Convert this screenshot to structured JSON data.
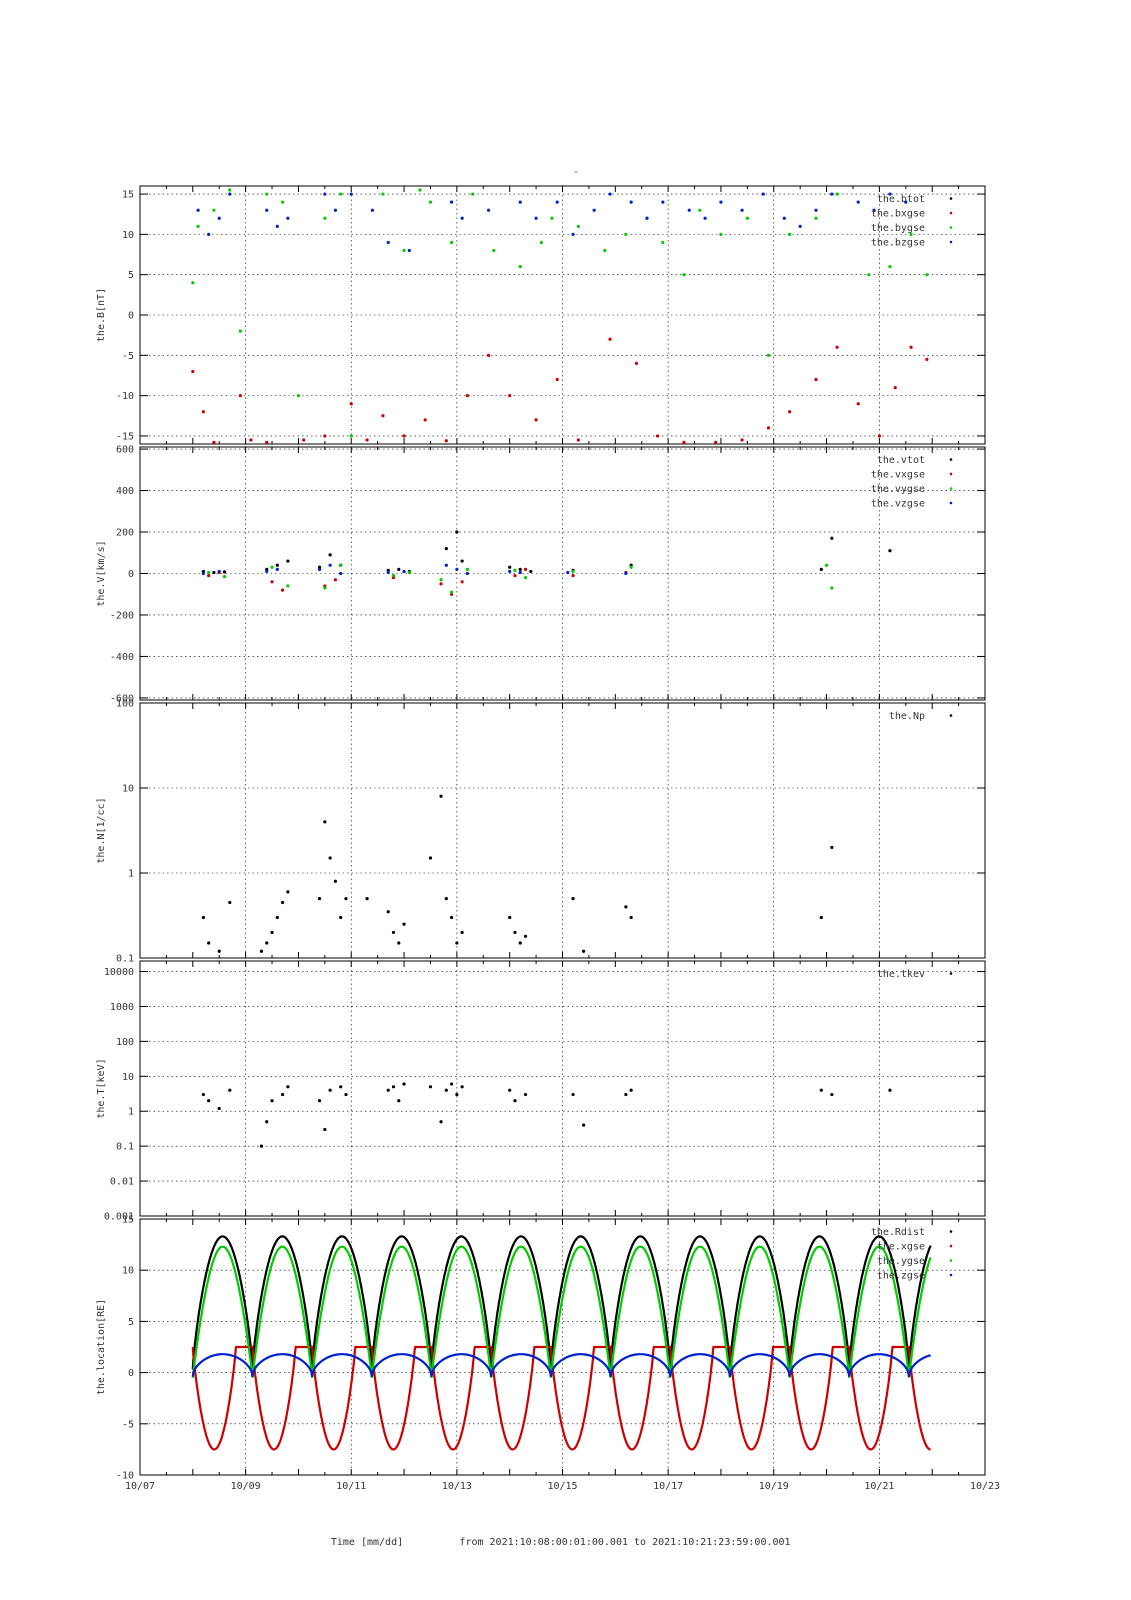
{
  "title": "-",
  "xaxis": {
    "label": "Time [mm/dd]",
    "range_text": "from 2021:10:08:00:01:00.001  to  2021:10:21:23:59:00.001",
    "day_range": [
      7,
      23
    ],
    "tick_days": [
      7,
      9,
      11,
      13,
      15,
      17,
      19,
      21,
      23
    ],
    "tick_labels": [
      "10/07",
      "10/09",
      "10/11",
      "10/13",
      "10/15",
      "10/17",
      "10/19",
      "10/21",
      "10/23"
    ]
  },
  "colors": {
    "black": "#000000",
    "red": "#cc0000",
    "green": "#00cc00",
    "blue": "#0022cc"
  },
  "chart_data": [
    {
      "type": "scatter",
      "panel": "B",
      "ylabel": "the.B[nT]",
      "ylim": [
        -16,
        16
      ],
      "yticks": [
        -15,
        -10,
        -5,
        0,
        5,
        10,
        15
      ],
      "ytick_labels": [
        "-15",
        "-10",
        "-5",
        "0",
        "5",
        "10",
        "15"
      ],
      "grid": true,
      "legend_position": "top-right",
      "series": [
        {
          "name": "the.btot",
          "color": "#000000",
          "x": [],
          "y": []
        },
        {
          "name": "the.bxgse",
          "color": "#cc0000",
          "x": [
            8.0,
            8.2,
            8.4,
            8.9,
            9.1,
            9.4,
            10.1,
            10.5,
            11.0,
            11.3,
            11.6,
            12.0,
            12.4,
            12.8,
            13.2,
            13.6,
            14.0,
            14.5,
            14.9,
            15.3,
            15.9,
            16.4,
            16.8,
            17.3,
            17.9,
            18.4,
            18.9,
            19.3,
            19.8,
            20.2,
            20.6,
            21.0,
            21.3,
            21.6,
            21.9
          ],
          "y": [
            -7,
            -12,
            -15.8,
            -10,
            -15.5,
            -15.8,
            -15.5,
            -15.0,
            -11,
            -15.5,
            -12.5,
            -15,
            -13,
            -15.6,
            -10,
            -5,
            -10,
            -13,
            -8,
            -15.5,
            -3,
            -6,
            -15,
            -15.8,
            -15.8,
            -15.5,
            -14,
            -12,
            -8,
            -4,
            -11,
            -15,
            -9,
            -4,
            -5.5
          ]
        },
        {
          "name": "the.bygse",
          "color": "#00cc00",
          "x": [
            8.0,
            8.1,
            8.4,
            8.7,
            8.9,
            9.4,
            9.7,
            10.0,
            10.5,
            10.8,
            11.0,
            11.6,
            12.0,
            12.3,
            12.5,
            12.9,
            13.3,
            13.7,
            14.2,
            14.6,
            14.8,
            15.3,
            15.8,
            16.2,
            16.6,
            16.9,
            17.3,
            17.6,
            18.0,
            18.5,
            18.9,
            19.3,
            19.8,
            20.2,
            20.8,
            21.2,
            21.6,
            21.9
          ],
          "y": [
            4,
            11,
            13,
            15.5,
            -2,
            15,
            14,
            -10,
            12,
            15,
            -15,
            15,
            8,
            15.5,
            14,
            9,
            15,
            8,
            6,
            9,
            12,
            11,
            8,
            10,
            12,
            9,
            5,
            13,
            10,
            12,
            -5,
            10,
            12,
            15,
            5,
            6,
            10,
            5
          ]
        },
        {
          "name": "the.bzgse",
          "color": "#0022cc",
          "x": [
            8.1,
            8.3,
            8.5,
            8.7,
            9.4,
            9.6,
            9.8,
            10.5,
            10.7,
            11.0,
            11.4,
            11.7,
            12.1,
            12.9,
            13.1,
            13.6,
            14.2,
            14.5,
            14.9,
            15.2,
            15.6,
            15.9,
            16.3,
            16.6,
            16.9,
            17.4,
            17.7,
            18.0,
            18.4,
            18.8,
            19.2,
            19.5,
            19.8,
            20.1,
            20.6,
            20.9,
            21.2,
            21.5
          ],
          "y": [
            13,
            10,
            12,
            15,
            13,
            11,
            12,
            15,
            13,
            15,
            13,
            9,
            8,
            14,
            12,
            13,
            14,
            12,
            14,
            10,
            13,
            15,
            14,
            12,
            14,
            13,
            12,
            14,
            13,
            15,
            12,
            11,
            13,
            15,
            14,
            13,
            15,
            14
          ]
        }
      ]
    },
    {
      "type": "scatter",
      "panel": "V",
      "ylabel": "the.V[km/s]",
      "ylim": [
        -610,
        610
      ],
      "yticks": [
        -600,
        -400,
        -200,
        0,
        200,
        400,
        600
      ],
      "ytick_labels": [
        "-600",
        "-400",
        "-200",
        "0",
        "200",
        "400",
        "600"
      ],
      "grid": true,
      "legend_position": "top-right",
      "series": [
        {
          "name": "the.vtot",
          "color": "#000000",
          "x": [
            8.2,
            8.4,
            8.6,
            9.4,
            9.6,
            9.8,
            10.4,
            10.6,
            10.8,
            11.7,
            11.9,
            12.1,
            12.8,
            13.0,
            13.1,
            14.0,
            14.2,
            14.4,
            15.2,
            16.3,
            19.9,
            20.1,
            21.2
          ],
          "y": [
            10,
            5,
            8,
            20,
            40,
            60,
            30,
            90,
            40,
            15,
            20,
            10,
            120,
            200,
            60,
            30,
            20,
            10,
            15,
            40,
            20,
            170,
            110
          ]
        },
        {
          "name": "the.vxgse",
          "color": "#cc0000",
          "x": [
            8.3,
            8.5,
            9.5,
            9.7,
            10.5,
            10.7,
            11.8,
            12.0,
            12.7,
            12.9,
            13.1,
            14.1,
            14.3,
            15.2,
            16.2
          ],
          "y": [
            -10,
            5,
            -40,
            -80,
            -60,
            -30,
            -20,
            10,
            -50,
            -100,
            -40,
            -10,
            20,
            -10,
            5
          ]
        },
        {
          "name": "the.vygse",
          "color": "#00cc00",
          "x": [
            8.3,
            8.6,
            9.5,
            9.8,
            10.5,
            10.8,
            11.8,
            12.1,
            12.7,
            12.9,
            13.2,
            14.1,
            14.3,
            15.2,
            16.3,
            20.0,
            20.1
          ],
          "y": [
            5,
            -15,
            30,
            -60,
            -70,
            40,
            -10,
            5,
            -30,
            -90,
            20,
            15,
            -20,
            10,
            30,
            40,
            -70
          ]
        },
        {
          "name": "the.vzgse",
          "color": "#0022cc",
          "x": [
            8.2,
            8.5,
            9.4,
            9.6,
            10.4,
            10.6,
            10.8,
            11.7,
            12.0,
            12.8,
            13.0,
            13.2,
            14.0,
            14.2,
            15.1,
            16.2
          ],
          "y": [
            0,
            10,
            10,
            20,
            20,
            40,
            0,
            5,
            10,
            40,
            20,
            0,
            10,
            5,
            5,
            0
          ]
        }
      ]
    },
    {
      "type": "scatter",
      "panel": "N",
      "ylabel": "the.N[1/cc]",
      "yscale": "log",
      "ylim": [
        0.1,
        100
      ],
      "yticks": [
        0.1,
        1,
        10,
        100
      ],
      "ytick_labels": [
        "0.1",
        "1",
        "10",
        "100"
      ],
      "grid": true,
      "legend_position": "top-right",
      "series": [
        {
          "name": "the.Np",
          "color": "#000000",
          "x": [
            8.2,
            8.3,
            8.5,
            8.7,
            9.3,
            9.4,
            9.5,
            9.6,
            9.7,
            9.8,
            10.4,
            10.5,
            10.6,
            10.7,
            10.8,
            10.9,
            11.3,
            11.7,
            11.8,
            11.9,
            12.0,
            12.5,
            12.7,
            12.8,
            12.9,
            13.0,
            13.1,
            14.0,
            14.1,
            14.2,
            14.3,
            15.2,
            15.4,
            16.2,
            16.3,
            19.9,
            20.1
          ],
          "y": [
            0.3,
            0.15,
            0.12,
            0.45,
            0.12,
            0.15,
            0.2,
            0.3,
            0.45,
            0.6,
            0.5,
            4.0,
            1.5,
            0.8,
            0.3,
            0.5,
            0.5,
            0.35,
            0.2,
            0.15,
            0.25,
            1.5,
            8.0,
            0.5,
            0.3,
            0.15,
            0.2,
            0.3,
            0.2,
            0.15,
            0.18,
            0.5,
            0.12,
            0.4,
            0.3,
            0.3,
            2.0
          ]
        }
      ]
    },
    {
      "type": "scatter",
      "panel": "T",
      "ylabel": "the.T[keV]",
      "yscale": "log",
      "ylim": [
        0.001,
        20000
      ],
      "yticks": [
        0.001,
        0.01,
        0.1,
        1,
        10,
        100,
        1000,
        10000
      ],
      "ytick_labels": [
        "0.001",
        "0.01",
        "0.1",
        "1",
        "10",
        "100",
        "1000",
        "10000"
      ],
      "grid": true,
      "legend_position": "top-right",
      "series": [
        {
          "name": "the.tkev",
          "color": "#000000",
          "x": [
            8.2,
            8.3,
            8.5,
            8.7,
            9.3,
            9.4,
            9.5,
            9.7,
            9.8,
            10.4,
            10.5,
            10.6,
            10.8,
            10.9,
            11.7,
            11.8,
            11.9,
            12.0,
            12.5,
            12.7,
            12.8,
            12.9,
            13.0,
            13.1,
            14.0,
            14.1,
            14.3,
            15.2,
            15.4,
            16.2,
            16.3,
            19.9,
            20.1,
            21.2
          ],
          "y": [
            3,
            2,
            1.2,
            4,
            0.1,
            0.5,
            2,
            3,
            5,
            2,
            0.3,
            4,
            5,
            3,
            4,
            5,
            2,
            6,
            5,
            0.5,
            4,
            6,
            3,
            5,
            4,
            2,
            3,
            3,
            0.4,
            3,
            4,
            4,
            3,
            4
          ]
        }
      ]
    },
    {
      "type": "line",
      "panel": "location",
      "ylabel": "the.location[RE]",
      "ylim": [
        -10,
        15
      ],
      "yticks": [
        -10,
        -5,
        0,
        5,
        10,
        15
      ],
      "ytick_labels": [
        "-10",
        "-5",
        "0",
        "5",
        "10",
        "15"
      ],
      "grid": true,
      "legend_position": "top-right",
      "orbit": {
        "t0": 8.0,
        "period": 1.13,
        "end": 21.98
      },
      "series": [
        {
          "name": "the.Rdist",
          "color": "#000000",
          "curve": "rdist"
        },
        {
          "name": "the.xgse",
          "color": "#cc0000",
          "curve": "x"
        },
        {
          "name": "the.ygse",
          "color": "#00cc00",
          "curve": "y"
        },
        {
          "name": "the.zgse",
          "color": "#0022cc",
          "curve": "z"
        }
      ]
    }
  ]
}
